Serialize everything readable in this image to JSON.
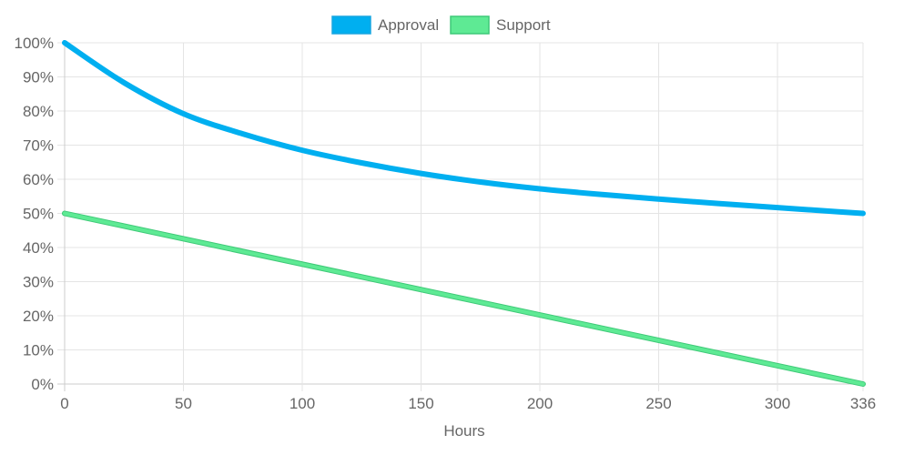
{
  "chart_data": {
    "type": "line",
    "title": "",
    "xlabel": "Hours",
    "ylabel": "",
    "xlim": [
      0,
      336
    ],
    "ylim": [
      0,
      100
    ],
    "x_ticks": [
      "0",
      "50",
      "100",
      "150",
      "200",
      "250",
      "300",
      "336"
    ],
    "x_tick_values": [
      0,
      50,
      100,
      150,
      200,
      250,
      300,
      336
    ],
    "y_ticks": [
      "0%",
      "10%",
      "20%",
      "30%",
      "40%",
      "50%",
      "60%",
      "70%",
      "80%",
      "90%",
      "100%"
    ],
    "y_tick_values": [
      0,
      10,
      20,
      30,
      40,
      50,
      60,
      70,
      80,
      90,
      100
    ],
    "grid": true,
    "legend_position": "top-center",
    "series": [
      {
        "name": "Approval",
        "color": "#00AFF0",
        "x": [
          0,
          25,
          50,
          75,
          100,
          125,
          150,
          175,
          200,
          225,
          250,
          275,
          300,
          325,
          336
        ],
        "values": [
          100,
          88.3,
          79.2,
          73.3,
          68.5,
          64.8,
          61.7,
          59.2,
          57.2,
          55.6,
          54.2,
          52.9,
          51.7,
          50.5,
          50
        ]
      },
      {
        "name": "Support",
        "color": "#5EEA94",
        "border": "#3FC978",
        "x": [
          0,
          336
        ],
        "values": [
          50,
          0
        ]
      }
    ]
  }
}
